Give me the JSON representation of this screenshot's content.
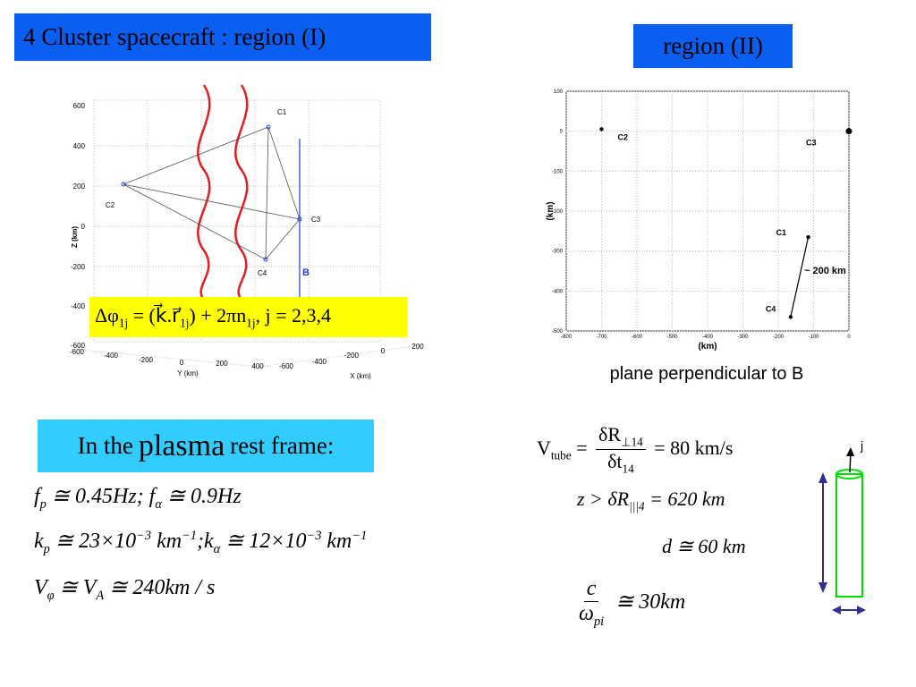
{
  "title": "4 Cluster spacecraft : region (I)",
  "region2_title": "region (II)",
  "frame_box": [
    "In the ",
    "plasma",
    " rest frame:"
  ],
  "plot3d": {
    "z_label": "Z (km)",
    "y_label": "Y (km)",
    "x_label": "X (km)",
    "z_ticks": [
      "600",
      "400",
      "200",
      "0",
      "-200",
      "-400",
      "-600"
    ],
    "y_ticks": [
      "-600",
      "-400",
      "-200",
      "0",
      "200",
      "400"
    ],
    "x_ticks": [
      "-600",
      "-400",
      "-200",
      "0",
      "200"
    ],
    "spacecraft": [
      "C1",
      "C2",
      "C3",
      "C4"
    ],
    "b_label": "B",
    "formula": [
      "Δφ",
      {
        "sub": "1j"
      },
      " = (k⃗.r⃗",
      {
        "sub": "1j"
      },
      ") + 2πn",
      {
        "sub": "1j"
      },
      ", j = 2,3,4"
    ]
  },
  "chart_data": {
    "type": "scatter",
    "xlabel": "(km)",
    "ylabel": "(km)",
    "xlim": [
      -800,
      0
    ],
    "xticks": [
      -800,
      -700,
      -600,
      -500,
      -400,
      -300,
      -200,
      -100,
      0
    ],
    "ylim": [
      -500,
      100
    ],
    "yticks": [
      100,
      0,
      -100,
      -200,
      -300,
      -400,
      -500
    ],
    "grid": true,
    "color": "#000000",
    "labels": [
      "C1",
      "C2",
      "C3",
      "C4"
    ],
    "x": [
      -115,
      -700,
      0,
      -165
    ],
    "values": [
      -265,
      5,
      0,
      -465
    ],
    "annotation": "~ 200 km",
    "caption": "plane perpendicular to B"
  },
  "formulas": {
    "left": [
      [
        "f",
        {
          "sub": "p"
        },
        " ≅ 0.45Hz; f",
        {
          "sub": "α"
        },
        " ≅ 0.9Hz"
      ],
      [
        "k",
        {
          "sub": "p"
        },
        " ≅ 23×10",
        {
          "sup": "−3"
        },
        " km",
        {
          "sup": "−1"
        },
        ";k",
        {
          "sub": "α"
        },
        " ≅ 12×10",
        {
          "sup": "−3"
        },
        " km",
        {
          "sup": "−1"
        }
      ],
      [
        "V",
        {
          "sub": "φ"
        },
        " ≅ V",
        {
          "sub": "A"
        },
        " ≅ 240km / s"
      ]
    ],
    "right": [
      [
        "V",
        {
          "sub": "tube"
        },
        " = ",
        {
          "frac": [
            [
              "δR",
              {
                "sub": "⊥14"
              }
            ],
            [
              "δt",
              {
                "sub": "14"
              }
            ]
          ]
        },
        " = 80 km/s"
      ],
      [
        "z > δR",
        {
          "sub": "|||4"
        },
        " = 620 km"
      ],
      [
        "d ≅ 60 km"
      ],
      [
        {
          "frac": [
            [
              "c"
            ],
            [
              "ω",
              {
                "sub": "pi"
              }
            ]
          ]
        },
        " ≅ 30km"
      ]
    ]
  },
  "current_label": "j"
}
